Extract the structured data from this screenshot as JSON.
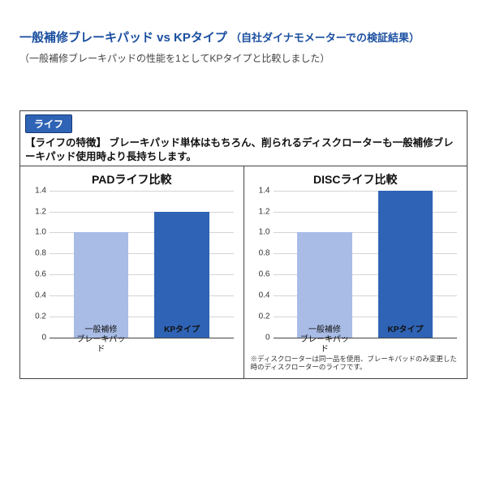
{
  "header": {
    "title_main": "一般補修ブレーキパッド vs KPタイプ",
    "title_sub": "（自社ダイナモメーターでの検証結果）",
    "subtitle": "（一般補修ブレーキパッドの性能を1としてKPタイプと比較しました）"
  },
  "frame": {
    "badge": "ライフ",
    "feature_label": "【ライフの特徴】",
    "feature_text": "ブレーキパッド単体はもちろん、削られるディスクローターも一般補修ブレーキパッド使用時より長持ちします。"
  },
  "charts": [
    {
      "title": "PADライフ比較",
      "ylim": [
        0,
        1.4
      ],
      "ytick_step": 0.2,
      "grid_color": "#d4d4d4",
      "bars": [
        {
          "label_line1": "一般補修",
          "label_line2": "ブレーキパッド",
          "value": 1.0,
          "color": "#a8bce6",
          "bold": false
        },
        {
          "label_line1": "KPタイプ",
          "label_line2": "",
          "value": 1.2,
          "color": "#2f63b5",
          "bold": true
        }
      ],
      "footnote": ""
    },
    {
      "title": "DISCライフ比較",
      "ylim": [
        0,
        1.4
      ],
      "ytick_step": 0.2,
      "grid_color": "#d4d4d4",
      "bars": [
        {
          "label_line1": "一般補修",
          "label_line2": "ブレーキパッド",
          "value": 1.0,
          "color": "#a8bce6",
          "bold": false
        },
        {
          "label_line1": "KPタイプ",
          "label_line2": "",
          "value": 1.4,
          "color": "#2f63b5",
          "bold": true
        }
      ],
      "footnote": "※ディスクローターは同一品を使用、ブレーキパッドのみ変更した時のディスクローターのライフです。"
    }
  ],
  "colors": {
    "heading": "#1b4fa0",
    "border": "#444444",
    "background": "#ffffff"
  }
}
